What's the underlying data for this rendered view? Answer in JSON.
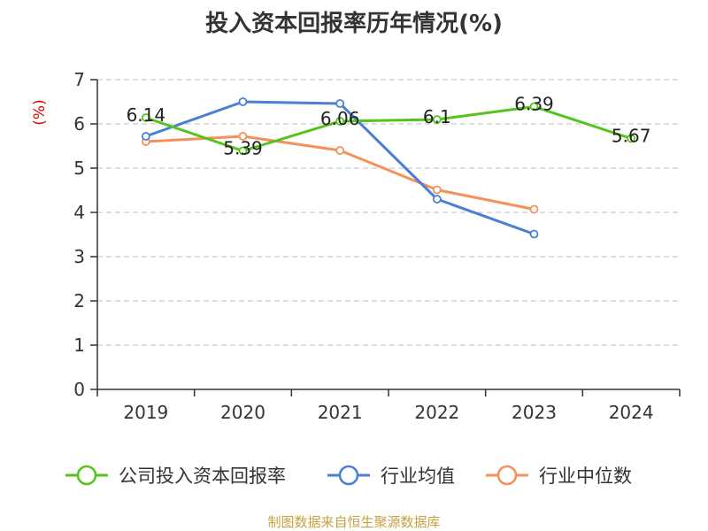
{
  "chart_data": {
    "type": "line",
    "title": "投入资本回报率历年情况(%)",
    "ylabel": "(%)",
    "xlabel": "",
    "categories": [
      "2019",
      "2020",
      "2021",
      "2022",
      "2023",
      "2024"
    ],
    "ylim": [
      0,
      7
    ],
    "yticks": [
      0,
      1,
      2,
      3,
      4,
      5,
      6,
      7
    ],
    "grid": true,
    "legend_position": "bottom",
    "series": [
      {
        "name": "公司投入资本回报率",
        "color": "#52c41a",
        "values": [
          6.14,
          5.39,
          6.06,
          6.1,
          6.39,
          5.67
        ],
        "labels": [
          "6.14",
          "5.39",
          "6.06",
          "6.1",
          "6.39",
          "5.67"
        ]
      },
      {
        "name": "行业均值",
        "color": "#4a7fd4",
        "values": [
          5.72,
          6.5,
          6.46,
          4.3,
          3.51,
          null
        ]
      },
      {
        "name": "行业中位数",
        "color": "#f59058",
        "values": [
          5.6,
          5.72,
          5.4,
          4.51,
          4.07,
          null
        ]
      }
    ]
  },
  "footer": {
    "source": "制图数据来自恒生聚源数据库"
  }
}
